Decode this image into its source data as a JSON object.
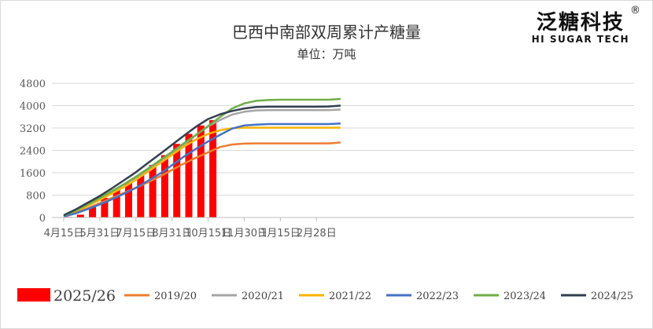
{
  "logo": {
    "name_cn": "泛糖科技",
    "registered": "®",
    "name_en": "HI SUGAR TECH"
  },
  "chart_data": {
    "type": "bar+line",
    "title": "巴西中南部双周累计产糖量",
    "subtitle": "单位：万吨",
    "ylim": [
      0,
      4800
    ],
    "yticks": [
      0,
      800,
      1600,
      2400,
      3200,
      4000,
      4800
    ],
    "xticks": [
      "4月15日",
      "5月31日",
      "7月15日",
      "8月31日",
      "10月15日",
      "11月30日",
      "1月15日",
      "2月28日"
    ],
    "n_periods": 24,
    "bar_series": {
      "name": "2025/26",
      "color": "#ff0000",
      "values": [
        20,
        100,
        390,
        700,
        1000,
        1240,
        1520,
        1880,
        2230,
        2630,
        2990,
        3290,
        3480
      ]
    },
    "series": [
      {
        "name": "2019/20",
        "color": "#ed7d31",
        "values": [
          40,
          180,
          330,
          510,
          700,
          880,
          1060,
          1260,
          1470,
          1700,
          1930,
          2140,
          2330,
          2520,
          2610,
          2640,
          2650,
          2650,
          2650,
          2650,
          2650,
          2650,
          2650,
          2680
        ]
      },
      {
        "name": "2020/21",
        "color": "#a5a5a5",
        "values": [
          70,
          250,
          470,
          700,
          930,
          1180,
          1430,
          1710,
          2000,
          2300,
          2610,
          2950,
          3260,
          3490,
          3680,
          3780,
          3830,
          3840,
          3840,
          3840,
          3840,
          3840,
          3840,
          3860
        ]
      },
      {
        "name": "2021/22",
        "color": "#f7b500",
        "values": [
          50,
          230,
          420,
          630,
          860,
          1090,
          1350,
          1640,
          1940,
          2240,
          2540,
          2790,
          2990,
          3120,
          3190,
          3210,
          3210,
          3210,
          3210,
          3210,
          3210,
          3210,
          3210,
          3210
        ]
      },
      {
        "name": "2022/23",
        "color": "#4472c4",
        "values": [
          30,
          150,
          300,
          470,
          650,
          850,
          1060,
          1310,
          1570,
          1870,
          2180,
          2460,
          2720,
          2960,
          3180,
          3290,
          3320,
          3340,
          3340,
          3340,
          3340,
          3340,
          3340,
          3360
        ]
      },
      {
        "name": "2023/24",
        "color": "#70ad47",
        "values": [
          60,
          250,
          470,
          700,
          940,
          1190,
          1460,
          1750,
          2050,
          2350,
          2660,
          2960,
          3270,
          3600,
          3900,
          4080,
          4170,
          4200,
          4210,
          4210,
          4210,
          4210,
          4210,
          4240
        ]
      },
      {
        "name": "2024/25",
        "color": "#333f50",
        "values": [
          80,
          290,
          530,
          770,
          1040,
          1330,
          1620,
          1950,
          2270,
          2600,
          2930,
          3250,
          3520,
          3690,
          3810,
          3900,
          3950,
          3960,
          3960,
          3960,
          3960,
          3960,
          3970,
          4000
        ]
      }
    ],
    "legend_position": "bottom",
    "grid": true
  }
}
